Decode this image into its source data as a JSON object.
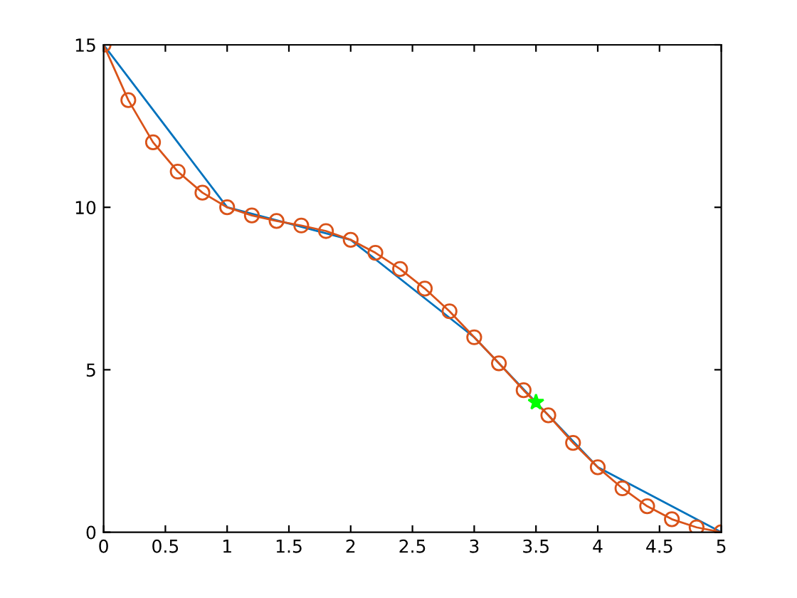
{
  "chart_data": {
    "type": "line",
    "xlim": [
      0,
      5
    ],
    "ylim": [
      0,
      15
    ],
    "xticks": [
      0,
      0.5,
      1,
      1.5,
      2,
      2.5,
      3,
      3.5,
      4,
      4.5,
      5
    ],
    "yticks": [
      0,
      5,
      10,
      15
    ],
    "grid": false,
    "series": [
      {
        "color": "#0072bd",
        "x": [
          0,
          1,
          2,
          3,
          4,
          5
        ],
        "values": [
          15,
          10,
          9,
          6,
          2,
          0
        ],
        "marker": "none"
      },
      {
        "color": "#d95319",
        "x": [
          0,
          0.2,
          0.4,
          0.6,
          0.8,
          1,
          1.2,
          1.4,
          1.6,
          1.8,
          2,
          2.2,
          2.4,
          2.6,
          2.8,
          3,
          3.2,
          3.4,
          3.6,
          3.8,
          4,
          4.2,
          4.4,
          4.6,
          4.8,
          5
        ],
        "values": [
          15,
          13.3,
          12,
          11.1,
          10.45,
          10,
          9.75,
          9.58,
          9.44,
          9.27,
          9,
          8.6,
          8.1,
          7.5,
          6.8,
          6,
          5.2,
          4.37,
          3.6,
          2.75,
          2,
          1.35,
          0.8,
          0.4,
          0.15,
          0
        ],
        "marker": "circle"
      },
      {
        "type": "scatter",
        "color": "#00ff00",
        "x": [
          3.5
        ],
        "values": [
          4
        ],
        "marker": "star"
      }
    ]
  }
}
